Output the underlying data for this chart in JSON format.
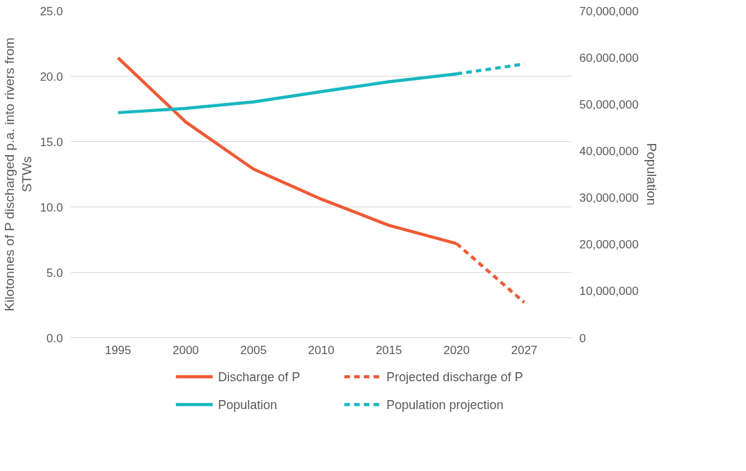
{
  "chart_data": {
    "type": "line",
    "categories": [
      "1995",
      "2000",
      "2005",
      "2010",
      "2015",
      "2020",
      "2027"
    ],
    "ylabel": "Kilotonnes of P discharged p.a. into rivers from STWs",
    "y2label": "Population",
    "ylim": [
      0,
      25
    ],
    "yticks": [
      {
        "value": 0,
        "label": "0.0"
      },
      {
        "value": 5,
        "label": "5.0"
      },
      {
        "value": 10,
        "label": "10.0"
      },
      {
        "value": 15,
        "label": "15.0"
      },
      {
        "value": 20,
        "label": "20.0"
      },
      {
        "value": 25,
        "label": "25.0"
      }
    ],
    "y2lim": [
      0,
      70000000
    ],
    "y2ticks": [
      0,
      {
        "value": 10000000,
        "label": "10,000,000"
      },
      {
        "value": 20000000,
        "label": "20,000,000"
      },
      {
        "value": 30000000,
        "label": "30,000,000"
      },
      {
        "value": 40000000,
        "label": "40,000,000"
      },
      {
        "value": 50000000,
        "label": "50,000,000"
      },
      {
        "value": 60000000,
        "label": "60,000,000"
      },
      {
        "value": 70000000,
        "label": "70,000,000"
      }
    ],
    "grid": "y",
    "legend": "bottom",
    "series": [
      {
        "name": "Discharge of P",
        "color": "#ee5a35",
        "values": [
          21.4,
          16.5,
          12.9,
          10.6,
          8.6,
          7.2,
          null
        ],
        "line_style": "solid"
      },
      {
        "name": "Projected discharge of P",
        "color": "#ee5a35",
        "values": [
          null,
          null,
          null,
          null,
          null,
          7.2,
          2.7
        ],
        "line_style": "dashed"
      },
      {
        "name": "Population",
        "color": "#18b7c0",
        "axis": "y2",
        "values": [
          48200000,
          49100000,
          50500000,
          52700000,
          54800000,
          56500000,
          null
        ],
        "line_style": "solid"
      },
      {
        "name": "Population projection",
        "color": "#18b7c0",
        "axis": "y2",
        "values": [
          null,
          null,
          null,
          null,
          null,
          56500000,
          58600000
        ],
        "line_style": "dashed"
      }
    ]
  }
}
